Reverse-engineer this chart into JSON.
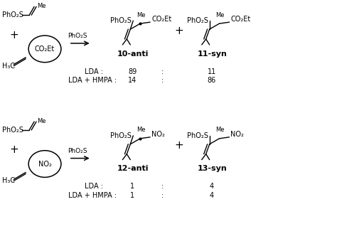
{
  "background_color": "#ffffff",
  "fig_width": 4.74,
  "fig_height": 3.46,
  "dpi": 100,
  "r1": {
    "product1_label": "10-anti",
    "product2_label": "11-syn",
    "lda_anti": "89",
    "lda_syn": "11",
    "hmpa_anti": "14",
    "hmpa_syn": "86"
  },
  "r2": {
    "product1_label": "12-anti",
    "product2_label": "13-syn",
    "lda_anti": "1",
    "lda_syn": "4",
    "hmpa_anti": "1",
    "hmpa_syn": "4"
  }
}
